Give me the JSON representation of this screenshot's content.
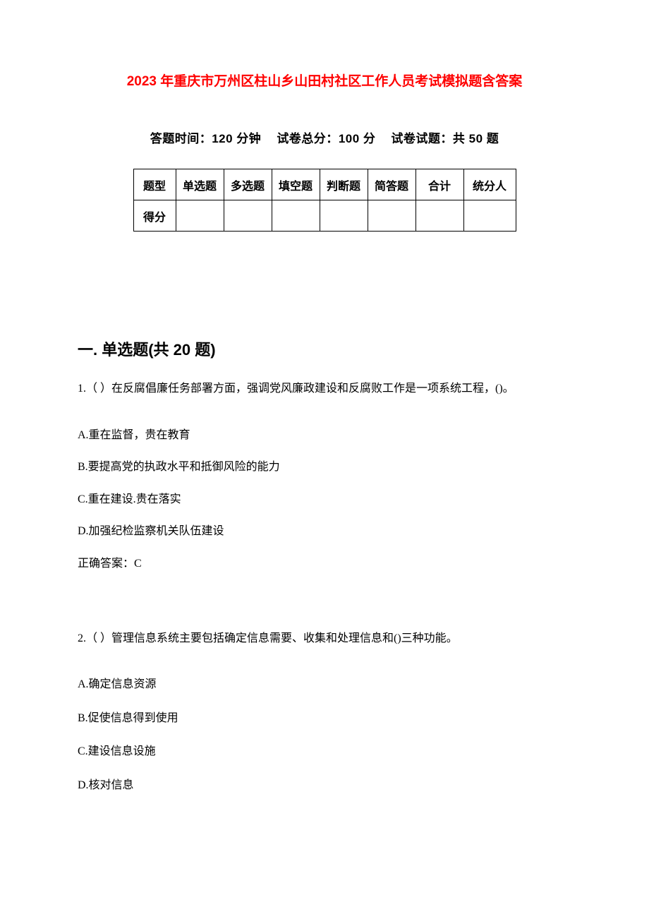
{
  "doc": {
    "title": "2023 年重庆市万州区柱山乡山田村社区工作人员考试模拟题含答案",
    "title_color": "#ff0000",
    "info": {
      "time_label": "答题时间：",
      "time_value": "120 分钟",
      "total_label": "试卷总分：",
      "total_value": "100 分",
      "count_label": "试卷试题：",
      "count_value": "共 50 题"
    },
    "score_table": {
      "row1": [
        "题型",
        "单选题",
        "多选题",
        "填空题",
        "判断题",
        "简答题",
        "合计",
        "统分人"
      ],
      "row2_label": "得分"
    },
    "section1": {
      "heading": "一. 单选题(共 20 题)",
      "q1": {
        "stem": "1.（ ）在反腐倡廉任务部署方面，强调党风廉政建设和反腐败工作是一项系统工程，()。",
        "options": {
          "A": "A.重在监督，贵在教育",
          "B": "B.要提高党的执政水平和抵御风险的能力",
          "C": "C.重在建设.贵在落实",
          "D": "D.加强纪检监察机关队伍建设"
        },
        "answer": "正确答案：C"
      },
      "q2": {
        "stem": "2.（ ）管理信息系统主要包括确定信息需要、收集和处理信息和()三种功能。",
        "options": {
          "A": "A.确定信息资源",
          "B": "B.促使信息得到使用",
          "C": "C.建设信息设施",
          "D": "D.核对信息"
        }
      }
    }
  }
}
